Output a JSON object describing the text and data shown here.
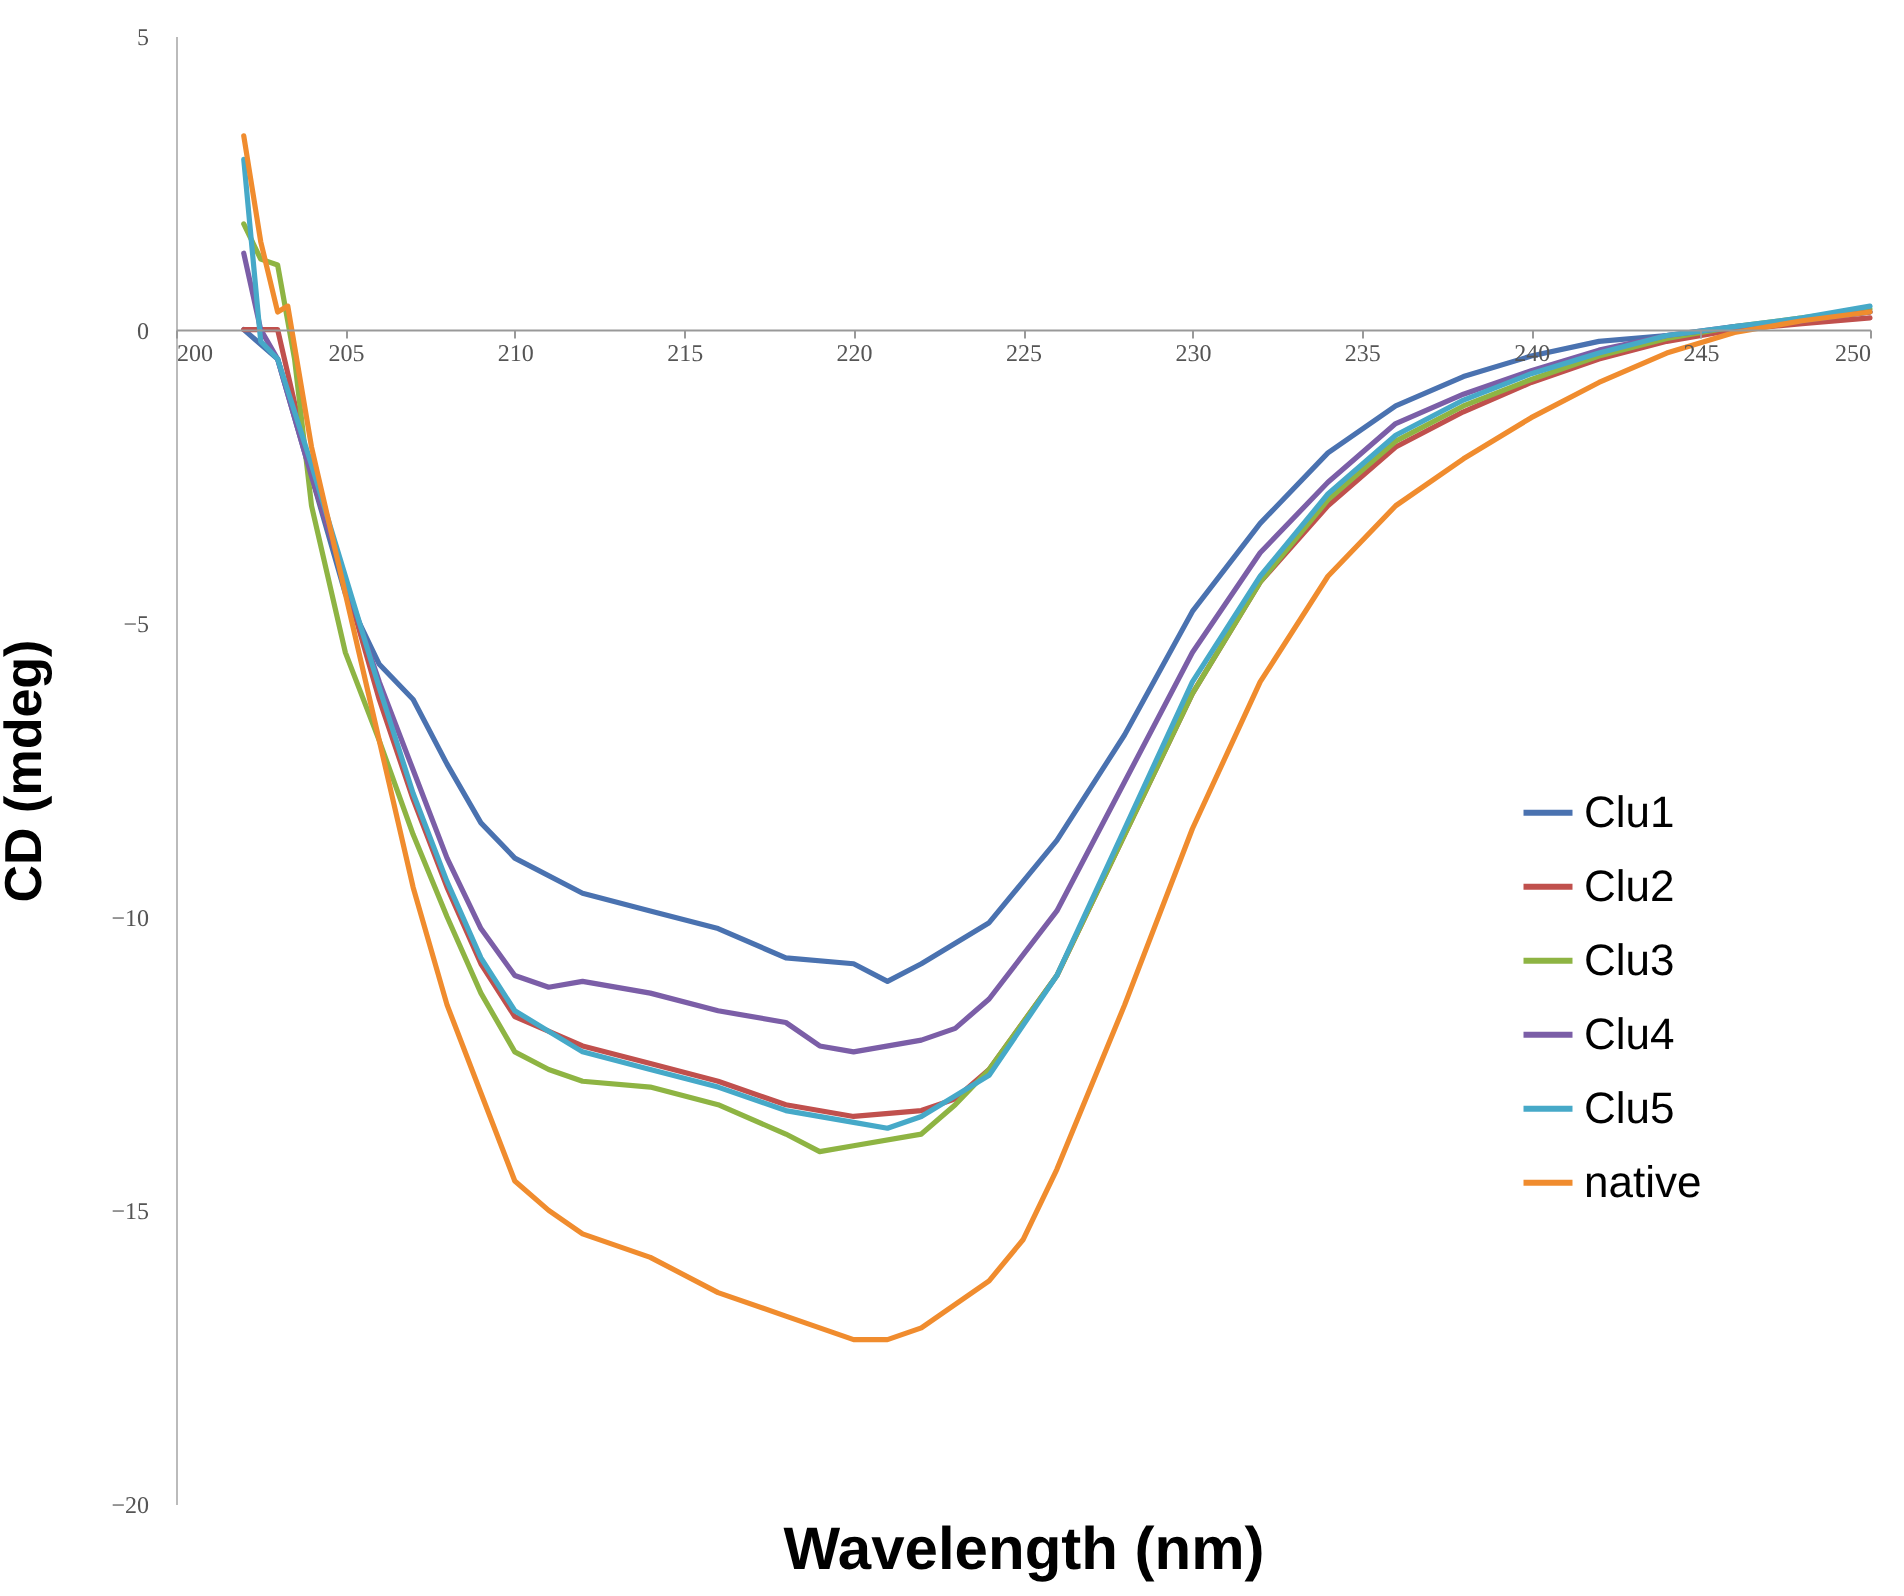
{
  "chart_data": {
    "type": "line",
    "xlabel": "Wavelength (nm)",
    "ylabel": "CD (mdeg)",
    "xlim": [
      200,
      250
    ],
    "ylim": [
      -20,
      5
    ],
    "xticks": [
      200,
      205,
      210,
      215,
      220,
      225,
      230,
      235,
      240,
      245,
      250
    ],
    "yticks": [
      -20,
      -15,
      -10,
      -5,
      0,
      5
    ],
    "grid": false,
    "legend": "right",
    "marker": "none",
    "line_style": "solid",
    "series": [
      {
        "name": "Clu1",
        "color": "#4a72b0",
        "x": [
          202,
          203,
          204,
          205,
          206,
          207,
          208,
          209,
          210,
          212,
          214,
          216,
          218,
          220,
          221,
          222,
          224,
          226,
          228,
          230,
          232,
          234,
          236,
          238,
          240,
          242,
          244,
          246,
          248,
          250
        ],
        "values": [
          0,
          -0.5,
          -2.5,
          -4.5,
          -5.7,
          -6.3,
          -7.4,
          -8.4,
          -9.0,
          -9.6,
          -9.9,
          -10.2,
          -10.7,
          -10.8,
          -11.1,
          -10.8,
          -10.1,
          -8.7,
          -6.9,
          -4.8,
          -3.3,
          -2.1,
          -1.3,
          -0.8,
          -0.45,
          -0.2,
          -0.1,
          0,
          0.15,
          0.3
        ]
      },
      {
        "name": "Clu2",
        "color": "#c0504d",
        "x": [
          202,
          203,
          204,
          205,
          206,
          207,
          208,
          209,
          210,
          212,
          214,
          216,
          218,
          220,
          222,
          223,
          224,
          226,
          228,
          230,
          232,
          234,
          236,
          238,
          240,
          242,
          244,
          246,
          248,
          250
        ],
        "values": [
          0,
          0,
          -2.5,
          -4.3,
          -6.3,
          -8,
          -9.5,
          -10.8,
          -11.7,
          -12.2,
          -12.5,
          -12.8,
          -13.2,
          -13.4,
          -13.3,
          -13.1,
          -12.6,
          -11,
          -8.6,
          -6.2,
          -4.3,
          -3.0,
          -2.0,
          -1.4,
          -0.9,
          -0.5,
          -0.2,
          0,
          0.1,
          0.2
        ]
      },
      {
        "name": "Clu3",
        "color": "#8eb443",
        "x": [
          202,
          202.5,
          203,
          203.5,
          204,
          205,
          206,
          207,
          208,
          209,
          210,
          211,
          212,
          214,
          216,
          218,
          219,
          220,
          222,
          223,
          224,
          226,
          228,
          230,
          232,
          234,
          236,
          238,
          240,
          242,
          244,
          246,
          248,
          250
        ],
        "values": [
          1.8,
          1.2,
          1.1,
          -0.5,
          -3,
          -5.5,
          -7,
          -8.6,
          -10,
          -11.3,
          -12.3,
          -12.6,
          -12.8,
          -12.9,
          -13.2,
          -13.7,
          -14.0,
          -13.9,
          -13.7,
          -13.2,
          -12.6,
          -11,
          -8.6,
          -6.2,
          -4.3,
          -2.9,
          -1.9,
          -1.3,
          -0.85,
          -0.45,
          -0.15,
          0.05,
          0.2,
          0.35
        ]
      },
      {
        "name": "Clu4",
        "color": "#7b5ea7",
        "x": [
          202,
          202.5,
          203,
          204,
          205,
          206,
          207,
          208,
          209,
          210,
          211,
          212,
          214,
          216,
          218,
          219,
          220,
          222,
          223,
          224,
          226,
          228,
          230,
          232,
          234,
          236,
          238,
          240,
          242,
          244,
          246,
          248,
          250
        ],
        "values": [
          1.3,
          0,
          -0.5,
          -2.5,
          -4.3,
          -6,
          -7.5,
          -9,
          -10.2,
          -11.0,
          -11.2,
          -11.1,
          -11.3,
          -11.6,
          -11.8,
          -12.2,
          -12.3,
          -12.1,
          -11.9,
          -11.4,
          -9.9,
          -7.7,
          -5.5,
          -3.8,
          -2.6,
          -1.6,
          -1.1,
          -0.7,
          -0.35,
          -0.1,
          0.05,
          0.15,
          0.3
        ]
      },
      {
        "name": "Clu5",
        "color": "#46a9c8",
        "x": [
          202,
          202.5,
          203,
          204,
          205,
          206,
          207,
          208,
          209,
          210,
          212,
          214,
          216,
          218,
          220,
          221,
          222,
          224,
          226,
          228,
          230,
          232,
          234,
          236,
          238,
          240,
          242,
          244,
          246,
          248,
          250
        ],
        "values": [
          2.9,
          -0.2,
          -0.5,
          -2.3,
          -4.2,
          -6.1,
          -7.9,
          -9.4,
          -10.7,
          -11.6,
          -12.3,
          -12.6,
          -12.9,
          -13.3,
          -13.5,
          -13.6,
          -13.4,
          -12.7,
          -11,
          -8.5,
          -6.0,
          -4.2,
          -2.8,
          -1.8,
          -1.2,
          -0.75,
          -0.4,
          -0.1,
          0.05,
          0.2,
          0.4
        ]
      },
      {
        "name": "native",
        "color": "#f08c2e",
        "x": [
          202,
          202.5,
          203,
          203.3,
          204,
          205,
          206,
          207,
          208,
          209,
          210,
          211,
          212,
          214,
          216,
          218,
          220,
          221,
          222,
          224,
          225,
          226,
          228,
          230,
          232,
          234,
          236,
          238,
          240,
          242,
          244,
          246,
          248,
          250
        ],
        "values": [
          3.3,
          1.5,
          0.3,
          0.4,
          -2,
          -4.5,
          -7,
          -9.5,
          -11.5,
          -13,
          -14.5,
          -15.0,
          -15.4,
          -15.8,
          -16.4,
          -16.8,
          -17.2,
          -17.2,
          -17.0,
          -16.2,
          -15.5,
          -14.3,
          -11.5,
          -8.5,
          -6.0,
          -4.2,
          -3.0,
          -2.2,
          -1.5,
          -0.9,
          -0.4,
          -0.05,
          0.15,
          0.3
        ]
      }
    ]
  }
}
